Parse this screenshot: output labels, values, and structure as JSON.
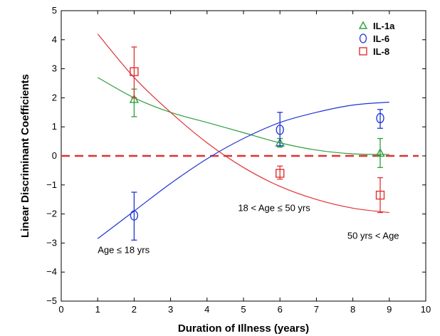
{
  "chart_data": {
    "type": "scatter",
    "title": "",
    "xlabel": "Duration of Illness (years)",
    "ylabel": "Linear Discriminant Coefficients",
    "xlim": [
      0,
      10
    ],
    "ylim": [
      -5,
      5
    ],
    "xticks": [
      "0",
      "1",
      "2",
      "3",
      "4",
      "5",
      "6",
      "7",
      "8",
      "9",
      "10"
    ],
    "yticks": [
      "5",
      "4",
      "3",
      "2",
      "1",
      "0",
      "−1",
      "−2",
      "−3",
      "−4",
      "−5"
    ],
    "grid": false,
    "legend_position": "top-right",
    "series": [
      {
        "name": "IL-1a",
        "marker": "triangle",
        "color": "#2e9e3e",
        "points": [
          {
            "x": 2,
            "y": 1.95,
            "err_low": 1.35,
            "err_high": 2.3
          },
          {
            "x": 6,
            "y": 0.45,
            "err_low": 0.3,
            "err_high": 0.6
          },
          {
            "x": 8.75,
            "y": 0.1,
            "err_low": -0.4,
            "err_high": 0.6
          }
        ],
        "fit": [
          [
            1,
            2.7
          ],
          [
            2,
            2.0
          ],
          [
            3,
            1.5
          ],
          [
            4,
            1.15
          ],
          [
            5,
            0.8
          ],
          [
            6,
            0.45
          ],
          [
            7,
            0.2
          ],
          [
            8,
            0.07
          ],
          [
            9,
            0.05
          ]
        ]
      },
      {
        "name": "IL-6",
        "marker": "circle",
        "color": "#1f33d1",
        "points": [
          {
            "x": 2,
            "y": -2.05,
            "err_low": -2.9,
            "err_high": -1.25
          },
          {
            "x": 6,
            "y": 0.9,
            "err_low": 0.35,
            "err_high": 1.5
          },
          {
            "x": 8.75,
            "y": 1.3,
            "err_low": 0.95,
            "err_high": 1.6
          }
        ],
        "fit": [
          [
            1,
            -2.85
          ],
          [
            2,
            -1.9
          ],
          [
            3,
            -0.95
          ],
          [
            4,
            -0.1
          ],
          [
            5,
            0.6
          ],
          [
            6,
            1.15
          ],
          [
            7,
            1.5
          ],
          [
            8,
            1.75
          ],
          [
            9,
            1.85
          ]
        ]
      },
      {
        "name": "IL-8",
        "marker": "square",
        "color": "#e03131",
        "points": [
          {
            "x": 2,
            "y": 2.9,
            "err_low": 2.0,
            "err_high": 3.75
          },
          {
            "x": 6,
            "y": -0.6,
            "err_low": -0.8,
            "err_high": -0.35
          },
          {
            "x": 8.75,
            "y": -1.35,
            "err_low": -1.95,
            "err_high": -0.75
          }
        ],
        "fit": [
          [
            1,
            4.2
          ],
          [
            2,
            2.7
          ],
          [
            3,
            1.5
          ],
          [
            4,
            0.45
          ],
          [
            5,
            -0.4
          ],
          [
            6,
            -1.05
          ],
          [
            7,
            -1.5
          ],
          [
            8,
            -1.8
          ],
          [
            9,
            -1.95
          ]
        ]
      }
    ],
    "reference_line": {
      "y": 0,
      "style": "dashed",
      "color": "#e03131"
    },
    "annotations": [
      {
        "text": "Age ≤ 18 yrs",
        "x": 1.0,
        "y": -3.35
      },
      {
        "text": "18 < Age ≤ 50 yrs",
        "x": 4.85,
        "y": -1.9
      },
      {
        "text": "50 yrs < Age",
        "x": 7.85,
        "y": -2.85
      }
    ]
  }
}
